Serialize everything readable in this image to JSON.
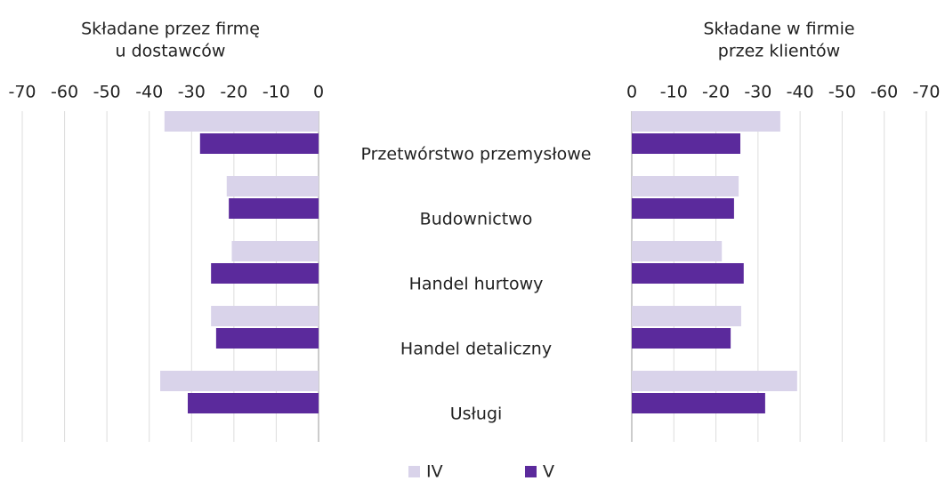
{
  "chart_data": {
    "type": "bar",
    "orientation": "horizontal",
    "categories": [
      "Przetwórstwo przemysłowe",
      "Budownictwo",
      "Handel hurtowy",
      "Handel detaliczny",
      "Usługi"
    ],
    "series": [
      {
        "name": "IV",
        "color": "#d9d3ea"
      },
      {
        "name": "V",
        "color": "#5b2a9c"
      }
    ],
    "grid": true,
    "legend": "bottom",
    "panels": [
      {
        "title": [
          "Składane przez firmę",
          "u dostawców"
        ],
        "xlim": [
          -70,
          0
        ],
        "xticks": [
          -70,
          -60,
          -50,
          -40,
          -30,
          -20,
          -10,
          0
        ],
        "values": [
          [
            -36.4,
            -21.7,
            -20.5,
            -25.4,
            -37.4
          ],
          [
            -28,
            -21.2,
            -25.4,
            -24.2,
            -30.9
          ]
        ]
      },
      {
        "title": [
          "Składane w firmie",
          "przez klientów"
        ],
        "xlim": [
          0,
          -70
        ],
        "xticks": [
          0,
          -10,
          -20,
          -30,
          -40,
          -50,
          -60,
          -70
        ],
        "values": [
          [
            -35.3,
            -25.4,
            -21.4,
            -26,
            -39.3
          ],
          [
            -25.8,
            -24.3,
            -26.6,
            -23.5,
            -31.7
          ]
        ]
      }
    ]
  }
}
